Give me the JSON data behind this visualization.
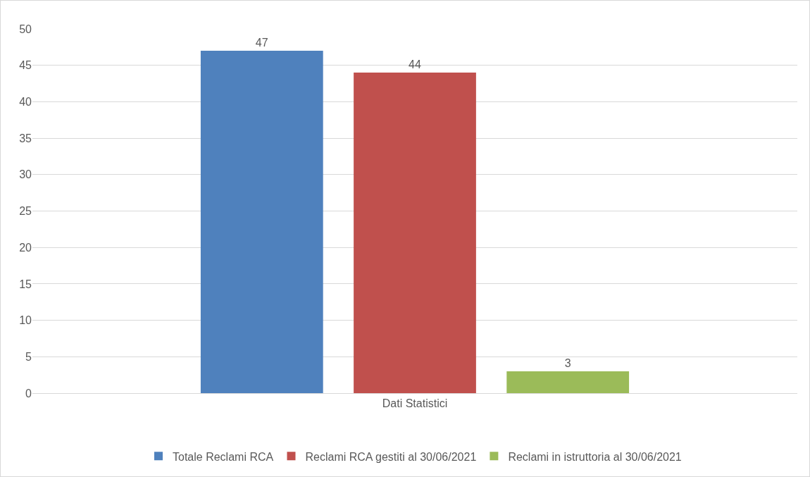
{
  "chart_data": {
    "type": "bar",
    "categories": [
      "Dati Statistici"
    ],
    "series": [
      {
        "name": "Totale Reclami RCA",
        "color": "#4f81bd",
        "values": [
          47
        ]
      },
      {
        "name": "Reclami RCA gestiti al 30/06/2021",
        "color": "#c0504d",
        "values": [
          44
        ]
      },
      {
        "name": "Reclami in istruttoria al 30/06/2021",
        "color": "#9bbb59",
        "values": [
          3
        ]
      }
    ],
    "ylim": [
      0,
      50
    ],
    "yticks": [
      0,
      5,
      10,
      15,
      20,
      25,
      30,
      35,
      40,
      45,
      50
    ],
    "grid": "y",
    "legend": "bottom",
    "data_labels": true
  }
}
